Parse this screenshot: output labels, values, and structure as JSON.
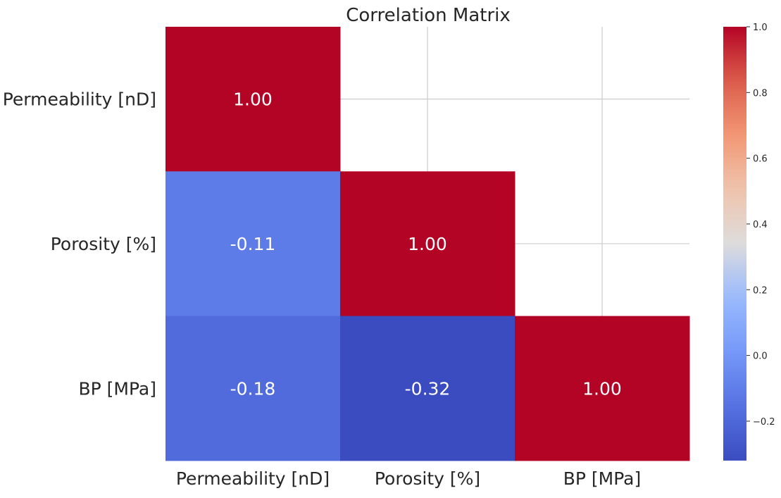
{
  "chart_data": {
    "type": "heatmap",
    "title": "Correlation Matrix",
    "xlabel": "",
    "ylabel": "",
    "x_categories": [
      "Permeability [nD]",
      "Porosity [%]",
      "BP [MPa]"
    ],
    "y_categories": [
      "Permeability [nD]",
      "Porosity [%]",
      "BP [MPa]"
    ],
    "mask": "upper triangle hidden",
    "grid": true,
    "cells": [
      {
        "row": 0,
        "col": 0,
        "value": 1.0,
        "label": "1.00"
      },
      {
        "row": 1,
        "col": 0,
        "value": -0.11,
        "label": "-0.11"
      },
      {
        "row": 1,
        "col": 1,
        "value": 1.0,
        "label": "1.00"
      },
      {
        "row": 2,
        "col": 0,
        "value": -0.18,
        "label": "-0.18"
      },
      {
        "row": 2,
        "col": 1,
        "value": -0.32,
        "label": "-0.32"
      },
      {
        "row": 2,
        "col": 2,
        "value": 1.0,
        "label": "1.00"
      }
    ],
    "colorbar": {
      "colormap": "coolwarm",
      "range": [
        -0.32,
        1.0
      ],
      "ticks": [
        1.0,
        0.8,
        0.6,
        0.4,
        0.2,
        0.0,
        -0.2
      ],
      "tick_labels": [
        "1.0",
        "0.8",
        "0.6",
        "0.4",
        "0.2",
        "0.0",
        "−0.2"
      ],
      "low_color": "#3b4cc0",
      "high_color": "#b40426"
    }
  }
}
